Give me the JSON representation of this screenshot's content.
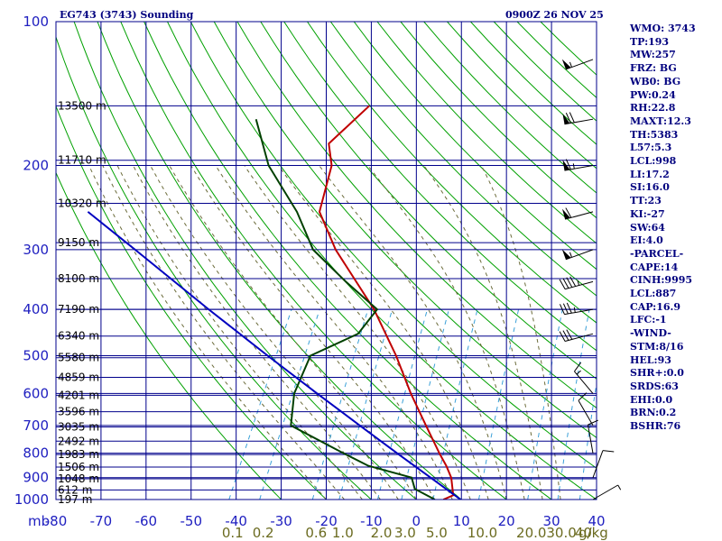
{
  "header": {
    "station_title": "EG743 (3743) Sounding",
    "valid_time": "0900Z 26 NOV 25"
  },
  "indices": [
    "WMO: 3743",
    "TP:193",
    "MW:257",
    "FRZ: BG",
    "WB0: BG",
    "PW:0.24",
    "RH:22.8",
    "MAXT:12.3",
    "TH:5383",
    "L57:5.3",
    "LCL:998",
    "LI:17.2",
    "SI:16.0",
    "TT:23",
    "KI:-27",
    "SW:64",
    "EI:4.0",
    "-PARCEL-",
    "CAPE:14",
    "CINH:9995",
    "LCL:887",
    "CAP:16.9",
    "LFC:-1",
    "-WIND-",
    "STM:8/16",
    "HEL:93",
    "SHR+:0.0",
    "SRDS:63",
    "EHI:0.0",
    "BRN:0.2",
    "BSHR:76"
  ],
  "colors": {
    "isobar": "#00008b",
    "isotherm": "#00008b",
    "dry_adiabat": "#00a000",
    "moist_adiabat": "#6b6b3a",
    "mixing_ratio": "#3aa0d8",
    "temperature": "#c00000",
    "dewpoint": "#004000",
    "parcel": "#0000c0",
    "axis_text": "#2020c0",
    "text": "#00007f"
  },
  "chart_data": {
    "type": "line",
    "title": "EG743 (3743) Sounding",
    "pressure_unit": "mb",
    "mixing_ratio_unit": "g/kg",
    "pressure_ticks": [
      100,
      200,
      300,
      400,
      500,
      600,
      700,
      800,
      900,
      1000
    ],
    "temperature_ticks": [
      -80,
      -70,
      -60,
      -50,
      -40,
      -30,
      -20,
      -10,
      0,
      10,
      20,
      30,
      40
    ],
    "mixing_ratio_ticks": [
      "0.1",
      "0.2",
      "0.6",
      "1.0",
      "2.0",
      "3.0",
      "5.0",
      "10.0",
      "20.0",
      "30.0",
      "40"
    ],
    "mixing_ratio_values": [
      0.1,
      0.2,
      0.6,
      1.0,
      2.0,
      3.0,
      5.0,
      10.0,
      20.0,
      30.0,
      40
    ],
    "height_labels": [
      {
        "label": "13500 m",
        "p": 150
      },
      {
        "label": "11710 m",
        "p": 195
      },
      {
        "label": "10320 m",
        "p": 240
      },
      {
        "label": "9150 m",
        "p": 290
      },
      {
        "label": "8100 m",
        "p": 345
      },
      {
        "label": "7190 m",
        "p": 400
      },
      {
        "label": "6340 m",
        "p": 455
      },
      {
        "label": "5580 m",
        "p": 505
      },
      {
        "label": "4859 m",
        "p": 555
      },
      {
        "label": "4201 m",
        "p": 605
      },
      {
        "label": "3596 m",
        "p": 655
      },
      {
        "label": "3035 m",
        "p": 705
      },
      {
        "label": "2492 m",
        "p": 755
      },
      {
        "label": "1983 m",
        "p": 805
      },
      {
        "label": "1506 m",
        "p": 855
      },
      {
        "label": "1048 m",
        "p": 905
      },
      {
        "label": "612 m",
        "p": 955
      },
      {
        "label": "197 m",
        "p": 1000
      }
    ],
    "temp_range": [
      -80,
      40
    ],
    "pressure_range": [
      100,
      1000
    ],
    "pressure_scale": "log",
    "skew": "skew-t",
    "grid": true,
    "series": [
      {
        "key": "temperature",
        "points": [
          {
            "p": 1000,
            "t": 6
          },
          {
            "p": 980,
            "t": 7.7
          },
          {
            "p": 900,
            "t": 5.2
          },
          {
            "p": 850,
            "t": 2.7
          },
          {
            "p": 800,
            "t": -0.3
          },
          {
            "p": 700,
            "t": -6.5
          },
          {
            "p": 600,
            "t": -13.6
          },
          {
            "p": 500,
            "t": -21.3
          },
          {
            "p": 400,
            "t": -31.6
          },
          {
            "p": 300,
            "t": -47.1
          },
          {
            "p": 250,
            "t": -55.1
          },
          {
            "p": 200,
            "t": -57.8
          },
          {
            "p": 180,
            "t": -61
          },
          {
            "p": 150,
            "t": -56.4
          }
        ]
      },
      {
        "key": "dewpoint",
        "points": [
          {
            "p": 1000,
            "t": 4.1
          },
          {
            "p": 950,
            "t": -1.6
          },
          {
            "p": 900,
            "t": -3.6
          },
          {
            "p": 850,
            "t": -14.6
          },
          {
            "p": 800,
            "t": -21.6
          },
          {
            "p": 700,
            "t": -36.5
          },
          {
            "p": 600,
            "t": -39.5
          },
          {
            "p": 500,
            "t": -40.3
          },
          {
            "p": 450,
            "t": -32.3
          },
          {
            "p": 400,
            "t": -30.9
          },
          {
            "p": 350,
            "t": -41.1
          },
          {
            "p": 300,
            "t": -52.1
          },
          {
            "p": 250,
            "t": -60.1
          },
          {
            "p": 200,
            "t": -71.8
          },
          {
            "p": 160,
            "t": -80
          }
        ]
      },
      {
        "key": "parcel",
        "points": [
          {
            "p": 1000,
            "t": 9.8
          },
          {
            "p": 900,
            "t": 0.6
          },
          {
            "p": 800,
            "t": -9.7
          },
          {
            "p": 700,
            "t": -21.2
          },
          {
            "p": 600,
            "t": -34.4
          },
          {
            "p": 500,
            "t": -49.8
          },
          {
            "p": 400,
            "t": -68.3
          },
          {
            "p": 300,
            "t": -91.6
          },
          {
            "p": 250,
            "t": -106.5
          }
        ]
      }
    ],
    "wind_barbs": [
      {
        "p": 120,
        "dir": 250,
        "spd": 55
      },
      {
        "p": 160,
        "dir": 260,
        "spd": 70
      },
      {
        "p": 200,
        "dir": 260,
        "spd": 65
      },
      {
        "p": 250,
        "dir": 255,
        "spd": 60
      },
      {
        "p": 300,
        "dir": 250,
        "spd": 55
      },
      {
        "p": 350,
        "dir": 255,
        "spd": 45
      },
      {
        "p": 400,
        "dir": 260,
        "spd": 35
      },
      {
        "p": 450,
        "dir": 255,
        "spd": 30
      },
      {
        "p": 600,
        "dir": 320,
        "spd": 15
      },
      {
        "p": 700,
        "dir": 330,
        "spd": 10
      },
      {
        "p": 800,
        "dir": 350,
        "spd": 8
      },
      {
        "p": 900,
        "dir": 20,
        "spd": 10
      },
      {
        "p": 1000,
        "dir": 60,
        "spd": 5
      }
    ]
  }
}
